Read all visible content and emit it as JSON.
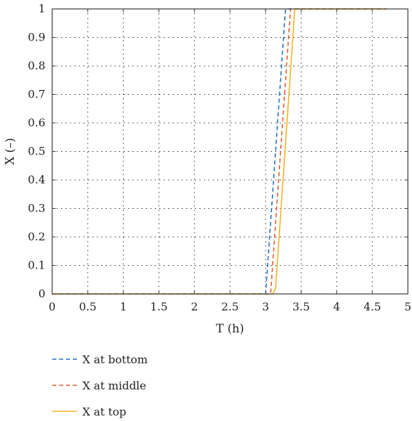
{
  "chart_data": {
    "type": "line",
    "xlabel": "T (h)",
    "ylabel": "X (–)",
    "xlim": [
      0,
      5
    ],
    "ylim": [
      0,
      1
    ],
    "xticks": [
      "0",
      "0.5",
      "1",
      "1.5",
      "2",
      "2.5",
      "3",
      "3.5",
      "4",
      "4.5",
      "5"
    ],
    "yticks": [
      "0",
      "0.1",
      "0.2",
      "0.3",
      "0.4",
      "0.5",
      "0.6",
      "0.7",
      "0.8",
      "0.9",
      "1"
    ],
    "grid": true,
    "legend_position": "below",
    "series": [
      {
        "name": "X at bottom",
        "color": "#1f6fbf",
        "style": "dashed",
        "points": [
          [
            0,
            0
          ],
          [
            3.0,
            0
          ],
          [
            3.28,
            1
          ],
          [
            4.7,
            1
          ]
        ]
      },
      {
        "name": "X at middle",
        "color": "#e05a2b",
        "style": "dashed",
        "points": [
          [
            0,
            0
          ],
          [
            3.07,
            0
          ],
          [
            3.35,
            1
          ],
          [
            4.7,
            1
          ]
        ]
      },
      {
        "name": "X at top",
        "color": "#f5b21b",
        "style": "solid",
        "points": [
          [
            0,
            0
          ],
          [
            3.1,
            0
          ],
          [
            3.14,
            0.02
          ],
          [
            3.41,
            1
          ],
          [
            4.7,
            1
          ]
        ]
      }
    ]
  }
}
